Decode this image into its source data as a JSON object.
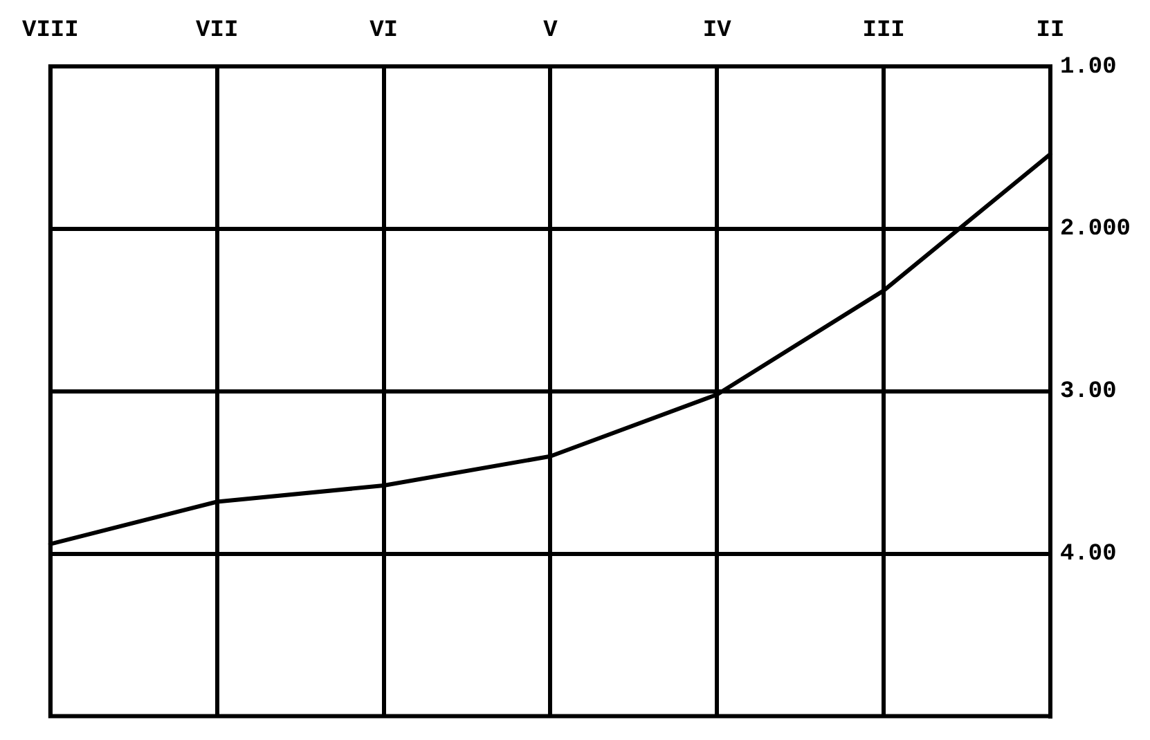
{
  "chart_data": {
    "type": "line",
    "categories": [
      "VIII",
      "VII",
      "VI",
      "V",
      "IV",
      "III",
      "II"
    ],
    "series": [
      {
        "color": "#000000",
        "values": [
          3.94,
          3.68,
          3.58,
          3.4,
          3.02,
          2.38,
          1.54
        ]
      }
    ],
    "ylim": [
      5,
      1
    ],
    "yticks": [
      {
        "value": 1,
        "label": "1.00"
      },
      {
        "value": 2,
        "label": "2.000"
      },
      {
        "value": 3,
        "label": "3.00"
      },
      {
        "value": 4,
        "label": "4.00"
      }
    ],
    "grid": true,
    "marker": "none",
    "line_style": "solid"
  }
}
